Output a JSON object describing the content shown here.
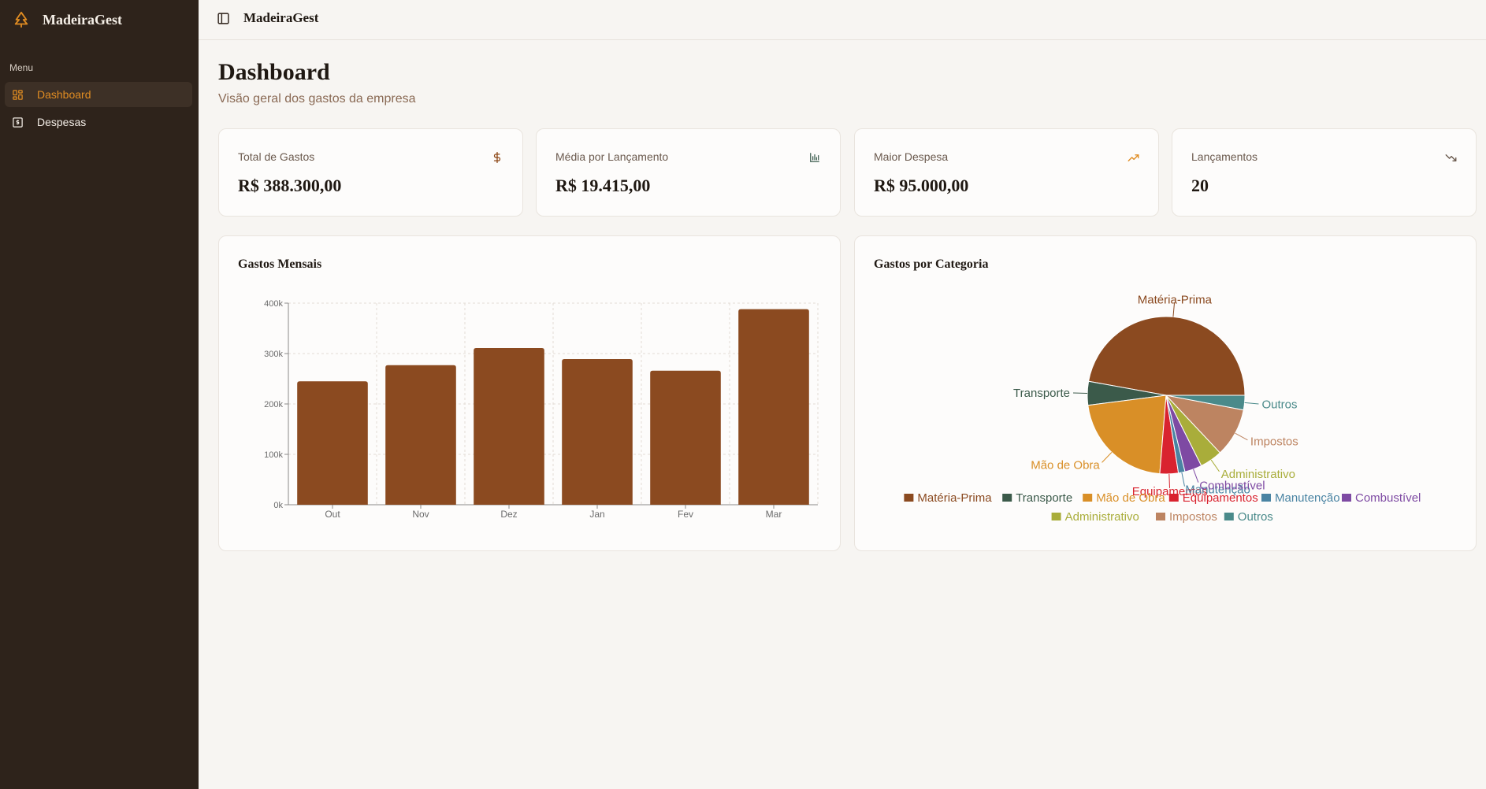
{
  "brand": {
    "name": "MadeiraGest",
    "icon": "tree-icon",
    "accent": "#e08c22"
  },
  "sidebar": {
    "menu_label": "Menu",
    "items": [
      {
        "label": "Dashboard",
        "icon": "dashboard-grid-icon",
        "active": true
      },
      {
        "label": "Despesas",
        "icon": "receipt-icon",
        "active": false
      }
    ]
  },
  "topbar": {
    "title": "MadeiraGest",
    "toggle_icon": "sidebar-toggle-icon"
  },
  "page": {
    "title": "Dashboard",
    "subtitle": "Visão geral dos gastos da empresa"
  },
  "stats": [
    {
      "label": "Total de Gastos",
      "value": "R$ 388.300,00",
      "icon": "dollar-icon",
      "icon_color": "#8b4513"
    },
    {
      "label": "Média por Lançamento",
      "value": "R$ 19.415,00",
      "icon": "bar-chart-icon",
      "icon_color": "#3f5f52"
    },
    {
      "label": "Maior Despesa",
      "value": "R$ 95.000,00",
      "icon": "trending-up-icon",
      "icon_color": "#e08c22"
    },
    {
      "label": "Lançamentos",
      "value": "20",
      "icon": "trending-down-icon",
      "icon_color": "#6b5a4e"
    }
  ],
  "monthly_panel": {
    "title": "Gastos Mensais"
  },
  "category_panel": {
    "title": "Gastos por Categoria"
  },
  "chart_data": [
    {
      "type": "bar",
      "title": "Gastos Mensais",
      "categories": [
        "Out",
        "Nov",
        "Dez",
        "Jan",
        "Fev",
        "Mar"
      ],
      "values": [
        245000,
        277000,
        311000,
        289000,
        266000,
        388000
      ],
      "ylim": [
        0,
        400000
      ],
      "yticks": [
        0,
        100000,
        200000,
        300000,
        400000
      ],
      "ytick_labels": [
        "0k",
        "100k",
        "200k",
        "300k",
        "400k"
      ],
      "xlabel": "",
      "ylabel": "",
      "grid": true,
      "color": "#8b4a20"
    },
    {
      "type": "pie",
      "title": "Gastos por Categoria",
      "legend_position": "bottom",
      "slices": [
        {
          "label": "Matéria-Prima",
          "value": 174,
          "color": "#8b4a20"
        },
        {
          "label": "Transporte",
          "value": 18,
          "color": "#3b5a4a"
        },
        {
          "label": "Mão de Obra",
          "value": 80,
          "color": "#d98f27"
        },
        {
          "label": "Equipamentos",
          "value": 14,
          "color": "#d9232f"
        },
        {
          "label": "Manutenção",
          "value": 5,
          "color": "#4a84a3"
        },
        {
          "label": "Combustível",
          "value": 13,
          "color": "#7e4aa3"
        },
        {
          "label": "Administrativo",
          "value": 17,
          "color": "#a9ad3a"
        },
        {
          "label": "Impostos",
          "value": 37,
          "color": "#bd8461"
        },
        {
          "label": "Outros",
          "value": 11,
          "color": "#4a8a8a"
        }
      ]
    }
  ]
}
